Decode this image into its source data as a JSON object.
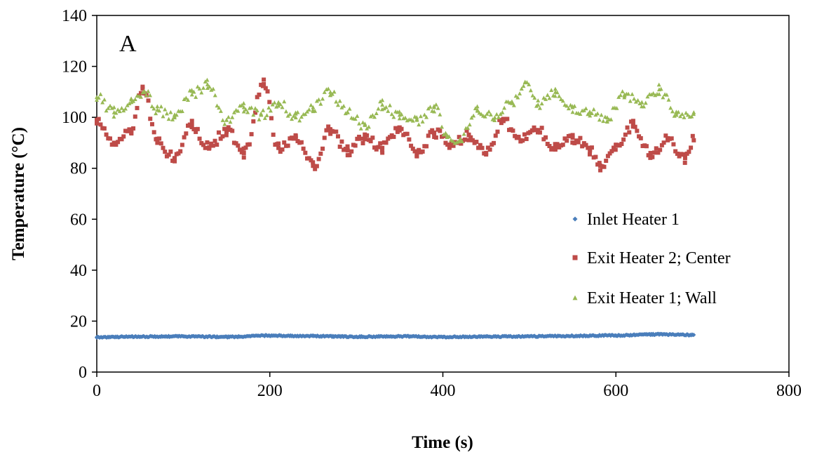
{
  "chart_data": {
    "type": "scatter",
    "panel_label": "A",
    "title": "",
    "xlabel": "Time (s)",
    "ylabel": "Temperature (°C)",
    "xlim": [
      0,
      800
    ],
    "ylim": [
      0,
      140
    ],
    "x_ticks": [
      0,
      200,
      400,
      600,
      800
    ],
    "y_ticks": [
      0,
      20,
      40,
      60,
      80,
      100,
      120,
      140
    ],
    "grid": false,
    "legend_position": "right",
    "series": [
      {
        "name": "Inlet Heater 1",
        "color": "#4a7ebb",
        "marker": "diamond",
        "x": [
          0,
          50,
          100,
          150,
          200,
          250,
          300,
          350,
          400,
          450,
          500,
          550,
          600,
          650,
          690
        ],
        "y": [
          13.7,
          13.9,
          14.0,
          13.8,
          14.3,
          14.1,
          13.9,
          14.0,
          13.8,
          13.9,
          14.0,
          14.2,
          14.4,
          14.8,
          14.6
        ]
      },
      {
        "name": "Exit Heater 2; Center",
        "color": "#be4b48",
        "marker": "square",
        "x": [
          0,
          20,
          40,
          53,
          70,
          90,
          110,
          130,
          150,
          170,
          193,
          210,
          230,
          250,
          270,
          290,
          310,
          330,
          350,
          370,
          390,
          410,
          430,
          450,
          470,
          490,
          510,
          530,
          550,
          570,
          582,
          600,
          620,
          640,
          660,
          680,
          690
        ],
        "y": [
          99,
          90,
          95,
          112,
          90,
          84,
          97,
          88,
          95,
          86,
          113,
          88,
          92,
          81,
          95,
          87,
          92,
          88,
          96,
          86,
          94,
          89,
          93,
          86,
          99,
          91,
          95,
          88,
          92,
          87,
          81,
          89,
          97,
          86,
          91,
          84,
          91
        ]
      },
      {
        "name": "Exit Heater 1; Wall",
        "color": "#98b954",
        "marker": "triangle",
        "x": [
          0,
          20,
          40,
          55,
          70,
          90,
          110,
          128,
          150,
          170,
          190,
          210,
          230,
          250,
          270,
          290,
          310,
          330,
          350,
          370,
          390,
          405,
          420,
          440,
          460,
          480,
          495,
          510,
          530,
          550,
          570,
          590,
          610,
          630,
          650,
          670,
          690
        ],
        "y": [
          108,
          102,
          106,
          110,
          103,
          100,
          109,
          113,
          99,
          104,
          101,
          106,
          100,
          104,
          110,
          102,
          97,
          105,
          101,
          99,
          104,
          93,
          91,
          103,
          100,
          106,
          114,
          105,
          110,
          104,
          102,
          100,
          109,
          106,
          111,
          101,
          102
        ]
      }
    ]
  }
}
